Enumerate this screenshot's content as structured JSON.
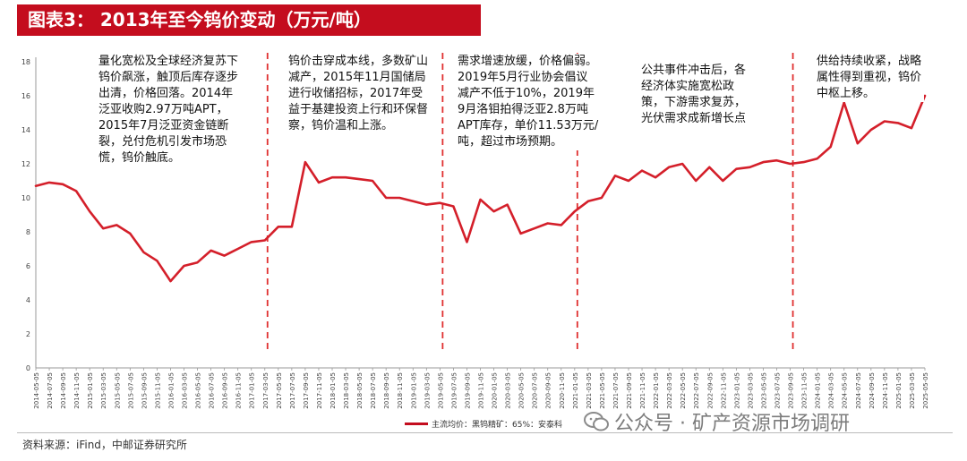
{
  "header": {
    "title": "图表3：  2013年至今钨价变动（万元/吨）"
  },
  "annotations": [
    "量化宽松及全球经济复苏下钨价飙涨，触顶后库存逐步出清，价格回落。2014年泛亚收购2.97万吨APT，2015年7月泛亚资金链断裂，兑付危机引发市场恐慌，钨价触底。",
    "钨价击穿成本线，多数矿山减产，2015年11月国储局进行收储招标，2017年受益于基建投资上行和环保督察，钨价温和上涨。",
    "需求增速放缓，价格偏弱。2019年5月行业协会倡议减产不低于10%，2019年9月洛钼拍得泛亚2.8万吨APT库存，单价11.53万元/吨，超过市场预期。",
    "公共事件冲击后，各经济体实施宽松政策，下游需求复苏，光伏需求成新增长点",
    "供给持续收紧，战略属性得到重视，钨价中枢上移。"
  ],
  "legend": {
    "label": "主流均价：黑钨精矿：65%：安泰科"
  },
  "source": "资料来源：iFind，中邮证券研究所",
  "watermark": "公众号 · 矿产资源市场调研",
  "colors": {
    "accent": "#c40d1e",
    "line": "#d41f2a",
    "dash": "#e03030"
  },
  "chart_data": {
    "type": "line",
    "ylim": [
      0,
      18
    ],
    "yticks": [
      0,
      2,
      4,
      6,
      8,
      10,
      12,
      14,
      16,
      18
    ],
    "xlabels": [
      "2014-05-05",
      "2014-07-05",
      "2014-09-05",
      "2014-11-05",
      "2015-01-05",
      "2015-03-05",
      "2015-05-05",
      "2015-07-05",
      "2015-09-05",
      "2015-11-05",
      "2016-01-05",
      "2016-03-05",
      "2016-05-05",
      "2016-07-05",
      "2016-09-05",
      "2016-11-05",
      "2017-01-05",
      "2017-03-05",
      "2017-05-05",
      "2017-07-05",
      "2017-09-05",
      "2017-11-05",
      "2018-01-05",
      "2018-03-05",
      "2018-05-05",
      "2018-07-05",
      "2018-09-05",
      "2018-11-05",
      "2019-01-05",
      "2019-03-05",
      "2019-05-05",
      "2019-07-05",
      "2019-09-05",
      "2019-11-05",
      "2020-01-05",
      "2020-03-05",
      "2020-05-05",
      "2020-07-05",
      "2020-09-05",
      "2020-11-05",
      "2021-01-05",
      "2021-03-05",
      "2021-05-05",
      "2021-07-05",
      "2021-09-05",
      "2021-11-05",
      "2022-01-05",
      "2022-03-05",
      "2022-05-05",
      "2022-07-05",
      "2022-09-05",
      "2022-11-05",
      "2023-01-05",
      "2023-03-05",
      "2023-05-05",
      "2023-07-05",
      "2023-09-05",
      "2023-11-05",
      "2024-01-05",
      "2024-03-05",
      "2024-05-05",
      "2024-07-05",
      "2024-09-05",
      "2024-11-05",
      "2025-01-05",
      "2025-03-05",
      "2025-05-05"
    ],
    "series": [
      {
        "name": "主流均价：黑钨精矿：65%：安泰科",
        "values": [
          10.7,
          10.9,
          10.8,
          10.4,
          9.2,
          8.2,
          8.4,
          7.9,
          6.8,
          6.3,
          5.1,
          6.0,
          6.2,
          6.9,
          6.6,
          7.0,
          7.4,
          7.5,
          8.3,
          8.3,
          12.1,
          10.9,
          11.2,
          11.2,
          11.1,
          11.0,
          10.0,
          10.0,
          9.8,
          9.6,
          9.7,
          9.5,
          7.4,
          9.9,
          9.2,
          9.6,
          7.9,
          8.2,
          8.5,
          8.4,
          9.2,
          9.8,
          10.0,
          11.3,
          11.0,
          11.6,
          11.2,
          11.8,
          12.0,
          11.0,
          11.8,
          11.0,
          11.7,
          11.8,
          12.1,
          12.2,
          12.0,
          12.1,
          12.3,
          13.0,
          15.6,
          13.2,
          14.0,
          14.5,
          14.4,
          14.1,
          16.0
        ]
      }
    ],
    "vlines": [
      "2017-03-05",
      "2019-05-05",
      "2021-01-05",
      "2023-09-05"
    ]
  }
}
